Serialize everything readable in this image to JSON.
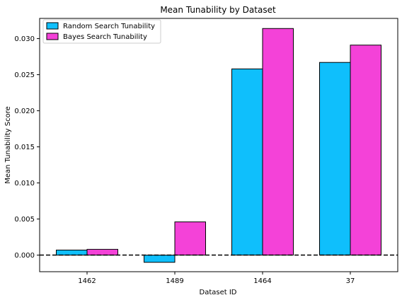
{
  "chart_data": {
    "type": "bar",
    "title": "Mean Tunability by Dataset",
    "xlabel": "Dataset ID",
    "ylabel": "Mean Tunability Score",
    "categories": [
      "1462",
      "1489",
      "1464",
      "37"
    ],
    "series": [
      {
        "name": "Random Search Tunability",
        "color": "#0fbffc",
        "values": [
          0.0007,
          -0.001,
          0.0258,
          0.0267
        ]
      },
      {
        "name": "Bayes Search Tunability",
        "color": "#f442d8",
        "values": [
          0.0008,
          0.0046,
          0.0314,
          0.0291
        ]
      }
    ],
    "ylim": [
      -0.0023,
      0.0328
    ],
    "yticks": [
      0.0,
      0.005,
      0.01,
      0.015,
      0.02,
      0.025,
      0.03
    ],
    "ytick_labels": [
      "0.000",
      "0.005",
      "0.010",
      "0.015",
      "0.020",
      "0.025",
      "0.030"
    ],
    "zero_line": true,
    "grid": false,
    "legend_position": "top-left"
  }
}
